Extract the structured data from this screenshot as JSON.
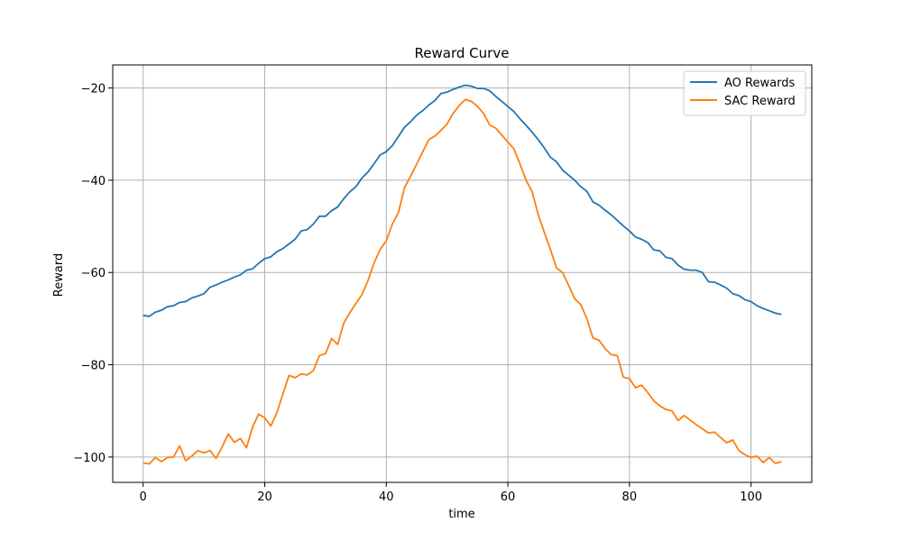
{
  "chart_data": {
    "type": "line",
    "title": "Reward Curve",
    "xlabel": "time",
    "ylabel": "Reward",
    "xlim": [
      -5,
      110
    ],
    "ylim": [
      -105.5,
      -15
    ],
    "xticks": [
      0,
      20,
      40,
      60,
      80,
      100
    ],
    "yticks": [
      -100,
      -80,
      -60,
      -40,
      -20
    ],
    "grid": true,
    "legend_position": "top-right",
    "x": [
      0,
      1,
      2,
      3,
      4,
      5,
      6,
      7,
      8,
      9,
      10,
      11,
      12,
      13,
      14,
      15,
      16,
      17,
      18,
      19,
      20,
      21,
      22,
      23,
      24,
      25,
      26,
      27,
      28,
      29,
      30,
      31,
      32,
      33,
      34,
      35,
      36,
      37,
      38,
      39,
      40,
      41,
      42,
      43,
      44,
      45,
      46,
      47,
      48,
      49,
      50,
      51,
      52,
      53,
      54,
      55,
      56,
      57,
      58,
      59,
      60,
      61,
      62,
      63,
      64,
      65,
      66,
      67,
      68,
      69,
      70,
      71,
      72,
      73,
      74,
      75,
      76,
      77,
      78,
      79,
      80,
      81,
      82,
      83,
      84,
      85,
      86,
      87,
      88,
      89,
      90,
      91,
      92,
      93,
      94,
      95,
      96,
      97,
      98,
      99,
      100,
      101,
      102,
      103,
      104,
      105
    ],
    "series": [
      {
        "name": "AO Rewards",
        "color": "#1f77b4",
        "values": [
          -69.3,
          -69.5,
          -68.6,
          -68.2,
          -67.4,
          -67.2,
          -66.5,
          -66.3,
          -65.5,
          -65.1,
          -64.6,
          -63.2,
          -62.7,
          -62.1,
          -61.6,
          -61.0,
          -60.5,
          -59.5,
          -59.2,
          -58.0,
          -57.0,
          -56.6,
          -55.5,
          -54.8,
          -53.8,
          -52.8,
          -51.0,
          -50.7,
          -49.5,
          -47.8,
          -47.8,
          -46.6,
          -45.8,
          -44.0,
          -42.5,
          -41.4,
          -39.5,
          -38.2,
          -36.4,
          -34.5,
          -33.8,
          -32.5,
          -30.5,
          -28.5,
          -27.3,
          -25.9,
          -24.9,
          -23.7,
          -22.7,
          -21.2,
          -20.9,
          -20.3,
          -19.8,
          -19.4,
          -19.6,
          -20.1,
          -20.1,
          -20.6,
          -21.8,
          -22.9,
          -24.0,
          -25.1,
          -26.7,
          -28.1,
          -29.6,
          -31.2,
          -33.0,
          -35.0,
          -36.0,
          -37.8,
          -38.9,
          -40.0,
          -41.4,
          -42.4,
          -44.7,
          -45.4,
          -46.5,
          -47.5,
          -48.7,
          -49.9,
          -51.0,
          -52.3,
          -52.8,
          -53.5,
          -55.1,
          -55.3,
          -56.7,
          -57.0,
          -58.4,
          -59.3,
          -59.5,
          -59.5,
          -60.0,
          -62.0,
          -62.1,
          -62.7,
          -63.4,
          -64.6,
          -65.0,
          -65.9,
          -66.3,
          -67.2,
          -67.8,
          -68.3,
          -68.8,
          -69.1
        ]
      },
      {
        "name": "SAC Reward",
        "color": "#ff7f0e",
        "values": [
          -101.3,
          -101.5,
          -100.1,
          -101.0,
          -100.1,
          -100.0,
          -97.6,
          -100.8,
          -99.8,
          -98.6,
          -99.1,
          -98.6,
          -100.3,
          -97.8,
          -95.0,
          -96.8,
          -96.0,
          -98.0,
          -93.5,
          -90.7,
          -91.5,
          -93.3,
          -90.4,
          -86.3,
          -82.3,
          -82.8,
          -82.0,
          -82.2,
          -81.3,
          -78.0,
          -77.6,
          -74.3,
          -75.6,
          -71.0,
          -68.7,
          -66.7,
          -64.8,
          -61.7,
          -57.9,
          -55.0,
          -53.1,
          -49.5,
          -47.0,
          -41.6,
          -39.1,
          -36.5,
          -33.8,
          -31.2,
          -30.4,
          -29.2,
          -27.8,
          -25.5,
          -23.8,
          -22.5,
          -22.9,
          -24.0,
          -25.5,
          -28.0,
          -28.7,
          -30.2,
          -31.7,
          -33.2,
          -36.5,
          -40.0,
          -42.5,
          -47.5,
          -51.3,
          -55.0,
          -59.0,
          -60.0,
          -62.8,
          -65.7,
          -67.0,
          -70.0,
          -74.2,
          -74.7,
          -76.5,
          -77.8,
          -78.0,
          -82.7,
          -83.0,
          -85.0,
          -84.4,
          -86.0,
          -87.8,
          -88.9,
          -89.7,
          -90.0,
          -92.1,
          -91.0,
          -92.0,
          -93.0,
          -93.9,
          -94.8,
          -94.6,
          -95.8,
          -96.9,
          -96.3,
          -98.6,
          -99.5,
          -100.1,
          -99.8,
          -101.2,
          -100.1,
          -101.4,
          -101.0
        ]
      }
    ]
  }
}
